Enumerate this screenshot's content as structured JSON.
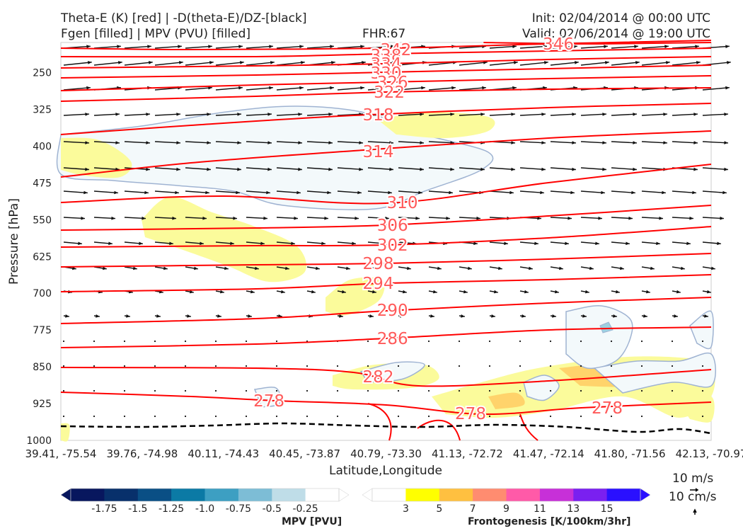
{
  "header": {
    "title_left_1": "Theta-E (K) [red] | -D(theta-E)/DZ-[black]",
    "title_left_2": "Fgen [filled] | MPV (PVU) [filled]",
    "fhr": "FHR:67",
    "init": "Init: 02/04/2014 @ 00:00 UTC",
    "valid": "Valid: 02/06/2014 @ 19:00 UTC"
  },
  "chart_data": {
    "type": "cross-section",
    "xlabel": "Latitude,Longitude",
    "ylabel": "Pressure [hPa]",
    "x_ticks": [
      "39.41, -75.54",
      "39.76, -74.98",
      "40.11, -74.43",
      "40.45, -73.87",
      "40.79, -73.30",
      "41.13, -72.72",
      "41.47, -72.14",
      "41.80, -71.56",
      "42.13, -70.97"
    ],
    "y_ticks": [
      250,
      325,
      400,
      475,
      550,
      625,
      700,
      775,
      850,
      925,
      1000
    ],
    "ylim": [
      1000,
      190
    ],
    "theta_e_color": "#ff0000",
    "theta_e_contours": [
      {
        "label": "342",
        "pts": [
          [
            0,
            68
          ],
          [
            0.2,
            70
          ],
          [
            0.5,
            68
          ],
          [
            0.75,
            62
          ],
          [
            1,
            57
          ]
        ]
      },
      {
        "label": "346",
        "pts": [
          [
            0.65,
            60
          ],
          [
            0.8,
            62
          ],
          [
            1,
            60
          ]
        ]
      },
      {
        "label": "338",
        "pts": [
          [
            0,
            80
          ],
          [
            0.3,
            80
          ],
          [
            0.5,
            76
          ],
          [
            0.75,
            72
          ],
          [
            1,
            68
          ]
        ]
      },
      {
        "label": "334",
        "pts": [
          [
            0,
            96
          ],
          [
            0.3,
            93
          ],
          [
            0.5,
            90
          ],
          [
            0.75,
            84
          ],
          [
            1,
            80
          ]
        ]
      },
      {
        "label": "330",
        "pts": [
          [
            0,
            110
          ],
          [
            0.3,
            106
          ],
          [
            0.5,
            102
          ],
          [
            0.75,
            97
          ],
          [
            1,
            92
          ]
        ]
      },
      {
        "label": "326",
        "pts": [
          [
            0,
            128
          ],
          [
            0.3,
            120
          ],
          [
            0.5,
            116
          ],
          [
            0.75,
            111
          ],
          [
            1,
            107
          ]
        ]
      },
      {
        "label": "322",
        "pts": [
          [
            0,
            143
          ],
          [
            0.3,
            136
          ],
          [
            0.5,
            130
          ],
          [
            0.75,
            126
          ],
          [
            1,
            124
          ]
        ]
      },
      {
        "label": "318",
        "pts": [
          [
            0,
            190
          ],
          [
            0.2,
            177
          ],
          [
            0.45,
            163
          ],
          [
            0.75,
            152
          ],
          [
            1,
            146
          ]
        ]
      },
      {
        "label": "314",
        "pts": [
          [
            0,
            250
          ],
          [
            0.2,
            230
          ],
          [
            0.45,
            213
          ],
          [
            0.75,
            195
          ],
          [
            1,
            185
          ]
        ]
      },
      {
        "label": "310",
        "pts": [
          [
            0,
            286
          ],
          [
            0.25,
            277
          ],
          [
            0.5,
            287
          ],
          [
            0.75,
            258
          ],
          [
            1,
            232
          ]
        ]
      },
      {
        "label": "306",
        "pts": [
          [
            0,
            325
          ],
          [
            0.3,
            322
          ],
          [
            0.5,
            318
          ],
          [
            0.75,
            305
          ],
          [
            1,
            290
          ]
        ]
      },
      {
        "label": "302",
        "pts": [
          [
            0,
            349
          ],
          [
            0.3,
            347
          ],
          [
            0.5,
            346
          ],
          [
            0.75,
            336
          ],
          [
            1,
            320
          ]
        ]
      },
      {
        "label": "298",
        "pts": [
          [
            0,
            377
          ],
          [
            0.3,
            374
          ],
          [
            0.5,
            372
          ],
          [
            0.75,
            366
          ],
          [
            1,
            358
          ]
        ]
      },
      {
        "label": "294",
        "pts": [
          [
            0,
            412
          ],
          [
            0.3,
            408
          ],
          [
            0.5,
            400
          ],
          [
            0.75,
            395
          ],
          [
            1,
            388
          ]
        ]
      },
      {
        "label": "290",
        "pts": [
          [
            0,
            457
          ],
          [
            0.3,
            450
          ],
          [
            0.5,
            439
          ],
          [
            0.75,
            428
          ],
          [
            1,
            420
          ]
        ]
      },
      {
        "label": "286",
        "pts": [
          [
            0,
            491
          ],
          [
            0.3,
            486
          ],
          [
            0.5,
            478
          ],
          [
            0.75,
            466
          ],
          [
            1,
            462
          ]
        ]
      },
      {
        "label": "282",
        "pts": [
          [
            0,
            519
          ],
          [
            0.3,
            520
          ],
          [
            0.45,
            526
          ],
          [
            0.55,
            545
          ],
          [
            0.75,
            538
          ],
          [
            1,
            522
          ]
        ]
      },
      {
        "label": "278",
        "pts": [
          [
            0,
            554
          ],
          [
            0.2,
            560
          ],
          [
            0.33,
            566
          ],
          [
            0.5,
            572
          ],
          [
            0.65,
            585
          ],
          [
            0.8,
            576
          ],
          [
            1,
            568
          ]
        ]
      }
    ],
    "theta_e_labels": [
      {
        "text": "342",
        "x": 0.515,
        "y": 70
      },
      {
        "text": "346",
        "x": 0.765,
        "y": 62
      },
      {
        "text": "338",
        "x": 0.5,
        "y": 78
      },
      {
        "text": "334",
        "x": 0.5,
        "y": 90
      },
      {
        "text": "330",
        "x": 0.5,
        "y": 103
      },
      {
        "text": "326",
        "x": 0.51,
        "y": 116
      },
      {
        "text": "322",
        "x": 0.505,
        "y": 130
      },
      {
        "text": "318",
        "x": 0.488,
        "y": 162
      },
      {
        "text": "314",
        "x": 0.488,
        "y": 214
      },
      {
        "text": "310",
        "x": 0.525,
        "y": 286
      },
      {
        "text": "306",
        "x": 0.51,
        "y": 318
      },
      {
        "text": "302",
        "x": 0.51,
        "y": 346
      },
      {
        "text": "298",
        "x": 0.488,
        "y": 372
      },
      {
        "text": "294",
        "x": 0.488,
        "y": 400
      },
      {
        "text": "290",
        "x": 0.51,
        "y": 438
      },
      {
        "text": "286",
        "x": 0.51,
        "y": 478
      },
      {
        "text": "282",
        "x": 0.488,
        "y": 532
      },
      {
        "text": "278",
        "x": 0.32,
        "y": 566
      },
      {
        "text": "278",
        "x": 0.63,
        "y": 584
      },
      {
        "text": "278",
        "x": 0.84,
        "y": 576
      }
    ],
    "wind_reference": [
      "10 m/s",
      "10 cm/s"
    ],
    "colorbar_mpv": {
      "label": "MPV [PVU]",
      "ticks": [
        "-1.75",
        "-1.5",
        "-1.25",
        "-1.0",
        "-0.75",
        "-0.5",
        "-0.25"
      ],
      "colors": [
        "#08175e",
        "#08306b",
        "#0a4f85",
        "#0b7aa5",
        "#3d9fc2",
        "#7dbdd6",
        "#bfdde8",
        "#ffffff"
      ]
    },
    "colorbar_fgen": {
      "label": "Frontogenesis [K/100km/3hr]",
      "ticks": [
        "3",
        "5",
        "7",
        "9",
        "11",
        "13",
        "15"
      ],
      "colors": [
        "#ffffff",
        "#ffff00",
        "#ffc040",
        "#ff8c70",
        "#ff5aa8",
        "#c730d8",
        "#7a20f0",
        "#2a10ff"
      ]
    },
    "mpv_fill": "#f3f9fb",
    "mpv_outline": "#9fb3d2",
    "fgen_fill": "#fbfb9b",
    "fgen_strong": "#ffd36b"
  }
}
